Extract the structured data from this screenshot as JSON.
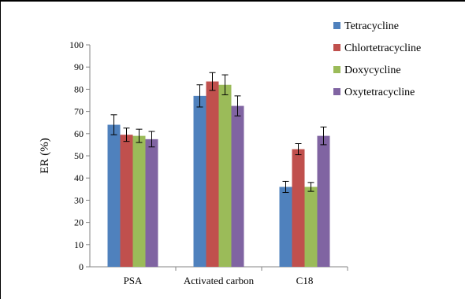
{
  "chart_data": {
    "type": "bar",
    "title": "",
    "xlabel": "",
    "ylabel": "ER (%)",
    "ylim": [
      0,
      100
    ],
    "yticks": [
      0,
      10,
      20,
      30,
      40,
      50,
      60,
      70,
      80,
      90,
      100
    ],
    "categories": [
      "PSA",
      "Activated carbon",
      "C18"
    ],
    "grid": false,
    "legend_position": "top-right",
    "series": [
      {
        "name": "Tetracycline",
        "color": "#4F81BD",
        "values": [
          64,
          77,
          36
        ],
        "errors": [
          4.5,
          5,
          2.5
        ]
      },
      {
        "name": "Chlortetracycline",
        "color": "#C0504D",
        "values": [
          59.5,
          83.5,
          53
        ],
        "errors": [
          3,
          4,
          2.5
        ]
      },
      {
        "name": "Doxycycline",
        "color": "#9BBB59",
        "values": [
          59,
          82,
          36
        ],
        "errors": [
          3,
          4.5,
          2
        ]
      },
      {
        "name": "Oxytetracycline",
        "color": "#8064A2",
        "values": [
          57.5,
          72.5,
          59
        ],
        "errors": [
          3.5,
          4.5,
          4
        ]
      }
    ]
  }
}
